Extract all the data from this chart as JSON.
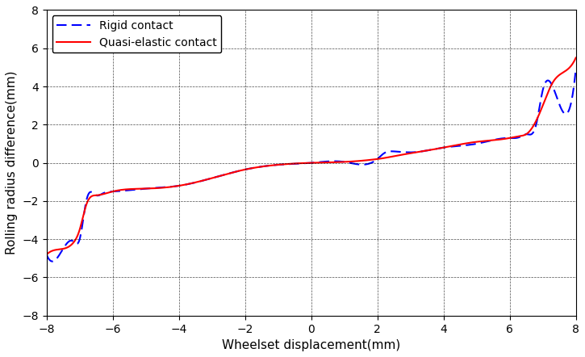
{
  "title": "",
  "xlabel": "Wheelset displacement(mm)",
  "ylabel": "Rolling radius difference(mm)",
  "xlim": [
    -8,
    8
  ],
  "ylim": [
    -8,
    8
  ],
  "xticks": [
    -8,
    -6,
    -4,
    -2,
    0,
    2,
    4,
    6,
    8
  ],
  "yticks": [
    -8,
    -6,
    -4,
    -2,
    0,
    2,
    4,
    6,
    8
  ],
  "legend1": "Rigid contact",
  "legend2": "Quasi-elastic contact",
  "rigid_color": "#0000FF",
  "quasi_color": "#FF0000",
  "grid_color": "#000000",
  "background_color": "#FFFFFF"
}
